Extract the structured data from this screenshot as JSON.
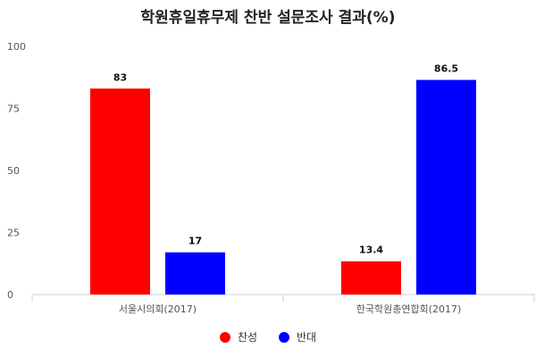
{
  "chart_data": {
    "type": "bar",
    "title": "학원휴일휴무제 찬반 설문조사 결과(%)",
    "categories": [
      "서울시의회(2017)",
      "한국학원총연합회(2017)"
    ],
    "series": [
      {
        "name": "찬성",
        "color": "#ff0000",
        "values": [
          83,
          13.4
        ],
        "labels": [
          "83",
          "13.4"
        ]
      },
      {
        "name": "반대",
        "color": "#0000ff",
        "values": [
          17,
          86.5
        ],
        "labels": [
          "17",
          "86.5"
        ]
      }
    ],
    "yticks": [
      "0",
      "25",
      "50",
      "75",
      "100"
    ],
    "ylim": [
      0,
      100
    ],
    "grid": false,
    "legend": "bottom-center"
  }
}
